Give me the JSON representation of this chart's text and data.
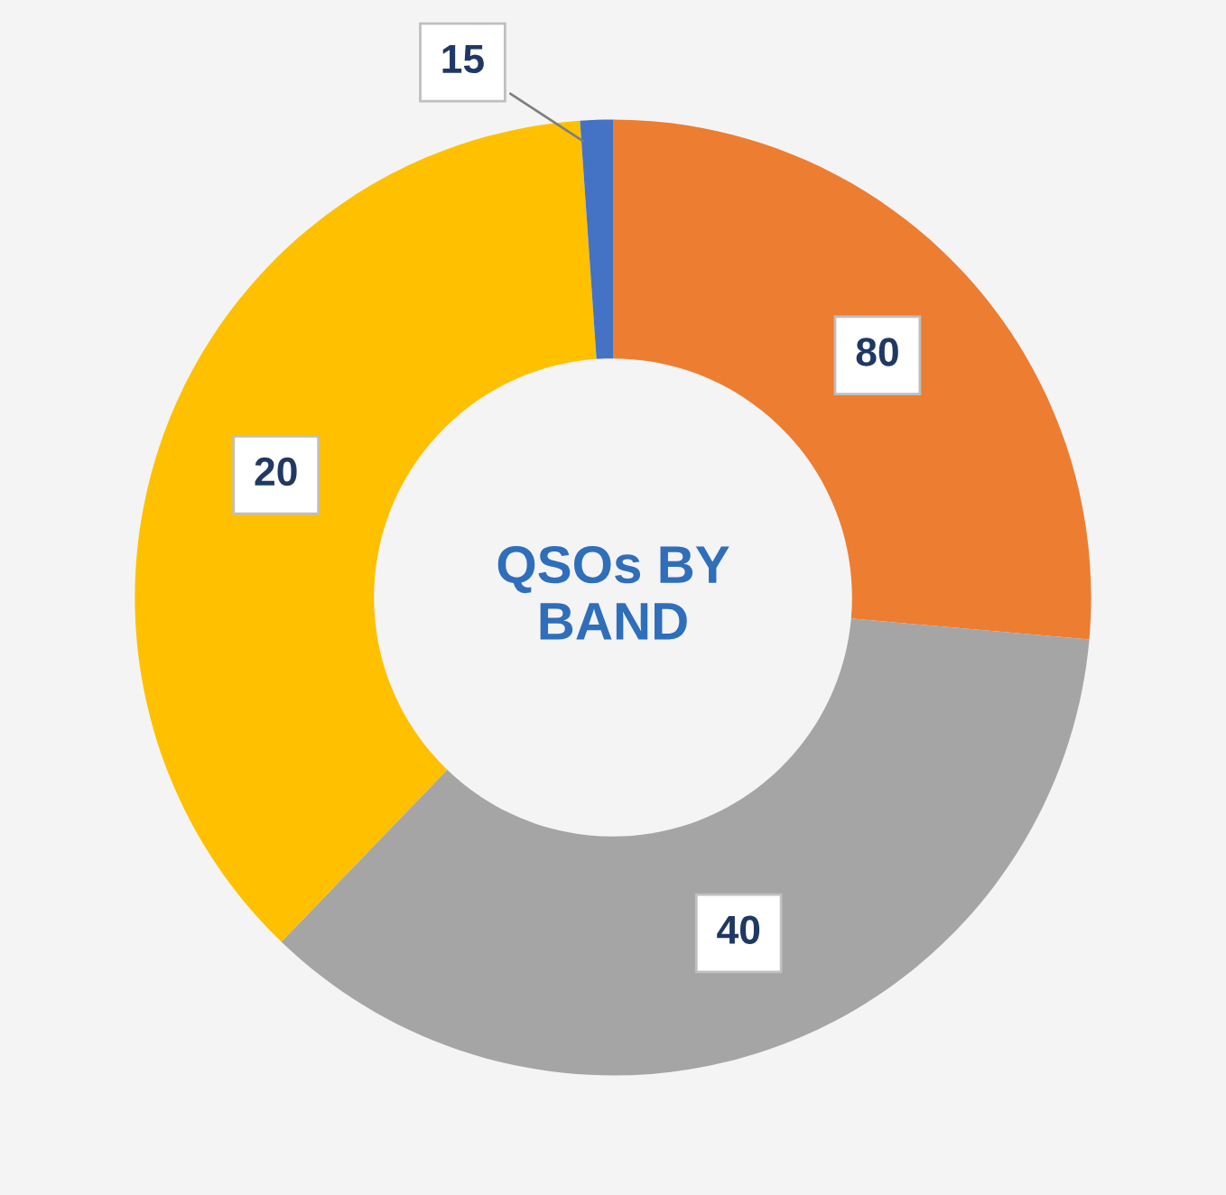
{
  "chart_data": {
    "type": "donut",
    "title": "QSOs BY BAND",
    "categories": [
      "80",
      "40",
      "20",
      "15"
    ],
    "values": [
      26.4,
      35.8,
      36.7,
      1.1
    ],
    "colors": [
      "#ed7d31",
      "#a5a5a5",
      "#ffc000",
      "#4472c4"
    ],
    "legend": false
  }
}
